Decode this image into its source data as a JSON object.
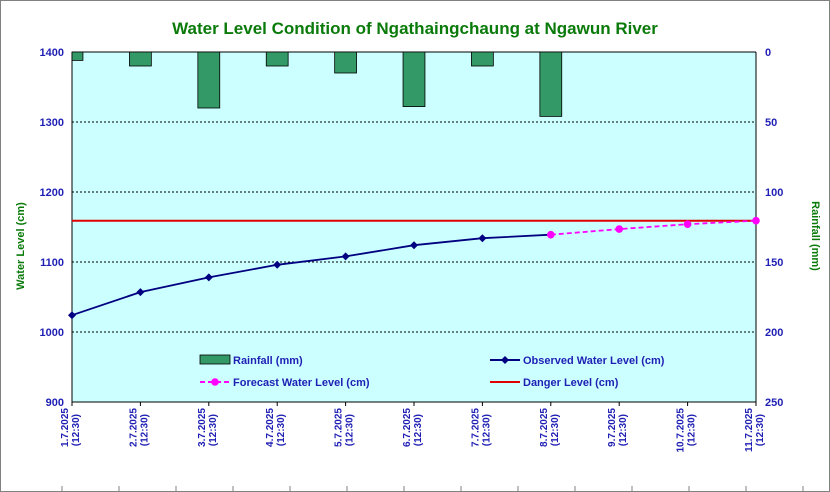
{
  "chart_data": {
    "type": "bar+line",
    "title": "Water Level Condition of  Ngathaingchaung at Ngawun River",
    "ylabel_left": "Water Level (cm)",
    "ylabel_right": "Rainfall (mm)",
    "ylim_left": [
      900,
      1400
    ],
    "yticks_left": [
      "900",
      "1000",
      "1100",
      "1200",
      "1300",
      "1400"
    ],
    "ylim_right": [
      250,
      0
    ],
    "yticks_right": [
      "250",
      "200",
      "150",
      "100",
      "50",
      "0"
    ],
    "grid": true,
    "legend_position": "lower-center",
    "categories": [
      [
        "1.7.2025",
        "(12:30)"
      ],
      [
        "2.7.2025",
        "(12:30)"
      ],
      [
        "3.7.2025",
        "(12:30)"
      ],
      [
        "4.7.2025",
        "(12:30)"
      ],
      [
        "5.7.2025",
        "(12:30)"
      ],
      [
        "6.7.2025",
        "(12:30)"
      ],
      [
        "7.7.2025",
        "(12:30)"
      ],
      [
        "8.7.2025",
        "(12:30)"
      ],
      [
        "9.7.2025",
        "(12:30)"
      ],
      [
        "10.7.2025",
        "(12:30)"
      ],
      [
        "11.7.2025",
        "(12:30)"
      ]
    ],
    "series": [
      {
        "name": "Rainfall (mm)",
        "type": "bar",
        "axis": "right",
        "color": "#339966",
        "values": [
          6,
          10,
          40,
          10,
          15,
          39,
          10,
          46,
          null,
          null,
          null
        ]
      },
      {
        "name": "Observed Water Level (cm)",
        "type": "line",
        "axis": "left",
        "color": "#000080",
        "marker": "diamond",
        "values": [
          1024,
          1057,
          1078,
          1096,
          1108,
          1124,
          1134,
          1139,
          null,
          null,
          null
        ]
      },
      {
        "name": "Forecast Water Level (cm)",
        "type": "line",
        "axis": "left",
        "color": "#ff00ff",
        "dashed": true,
        "marker": "circle",
        "values": [
          null,
          null,
          null,
          null,
          null,
          null,
          null,
          1139,
          1147,
          1154,
          1159
        ]
      },
      {
        "name": "Danger Level (cm)",
        "type": "line",
        "axis": "left",
        "color": "#e00000",
        "values": [
          1159,
          1159,
          1159,
          1159,
          1159,
          1159,
          1159,
          1159,
          1159,
          1159,
          1159
        ]
      }
    ]
  },
  "colors": {
    "plot_background": "#ccffff",
    "title": "#0a7a0a",
    "tick_text": "#1f1fb4"
  }
}
